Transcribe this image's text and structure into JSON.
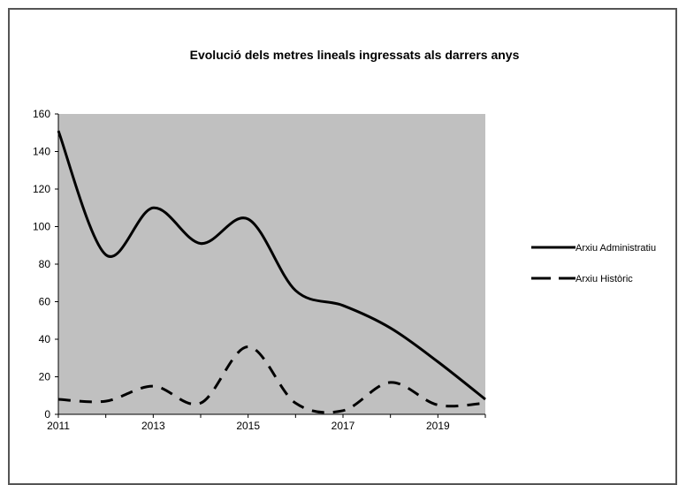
{
  "chart_data": {
    "type": "line",
    "title": "Evolució dels metres lineals ingressats als darrers anys",
    "xlabel": "",
    "ylabel": "",
    "x": [
      2011,
      2012,
      2013,
      2014,
      2015,
      2016,
      2017,
      2018,
      2019,
      2020
    ],
    "x_tick_labels": [
      "2011",
      "2013",
      "2015",
      "2017",
      "2019"
    ],
    "x_ticks": [
      2011,
      2013,
      2015,
      2017,
      2019
    ],
    "xlim": [
      2011,
      2020
    ],
    "ylim": [
      0,
      160
    ],
    "y_ticks": [
      0,
      20,
      40,
      60,
      80,
      100,
      120,
      140,
      160
    ],
    "y_tick_labels": [
      "0",
      "20",
      "40",
      "60",
      "80",
      "100",
      "120",
      "140",
      "160"
    ],
    "grid": false,
    "plot_background": "#c0c0c0",
    "legend_position": "right",
    "series": [
      {
        "name": "Arxiu Administratiu",
        "style": "solid",
        "color": "#000000",
        "values": [
          151,
          85,
          110,
          91,
          104,
          66,
          58,
          46,
          28,
          8
        ]
      },
      {
        "name": "Arxiu Històric",
        "style": "dashed",
        "color": "#000000",
        "values": [
          8,
          7,
          15,
          6,
          36,
          6,
          2,
          17,
          5,
          6
        ]
      }
    ]
  }
}
